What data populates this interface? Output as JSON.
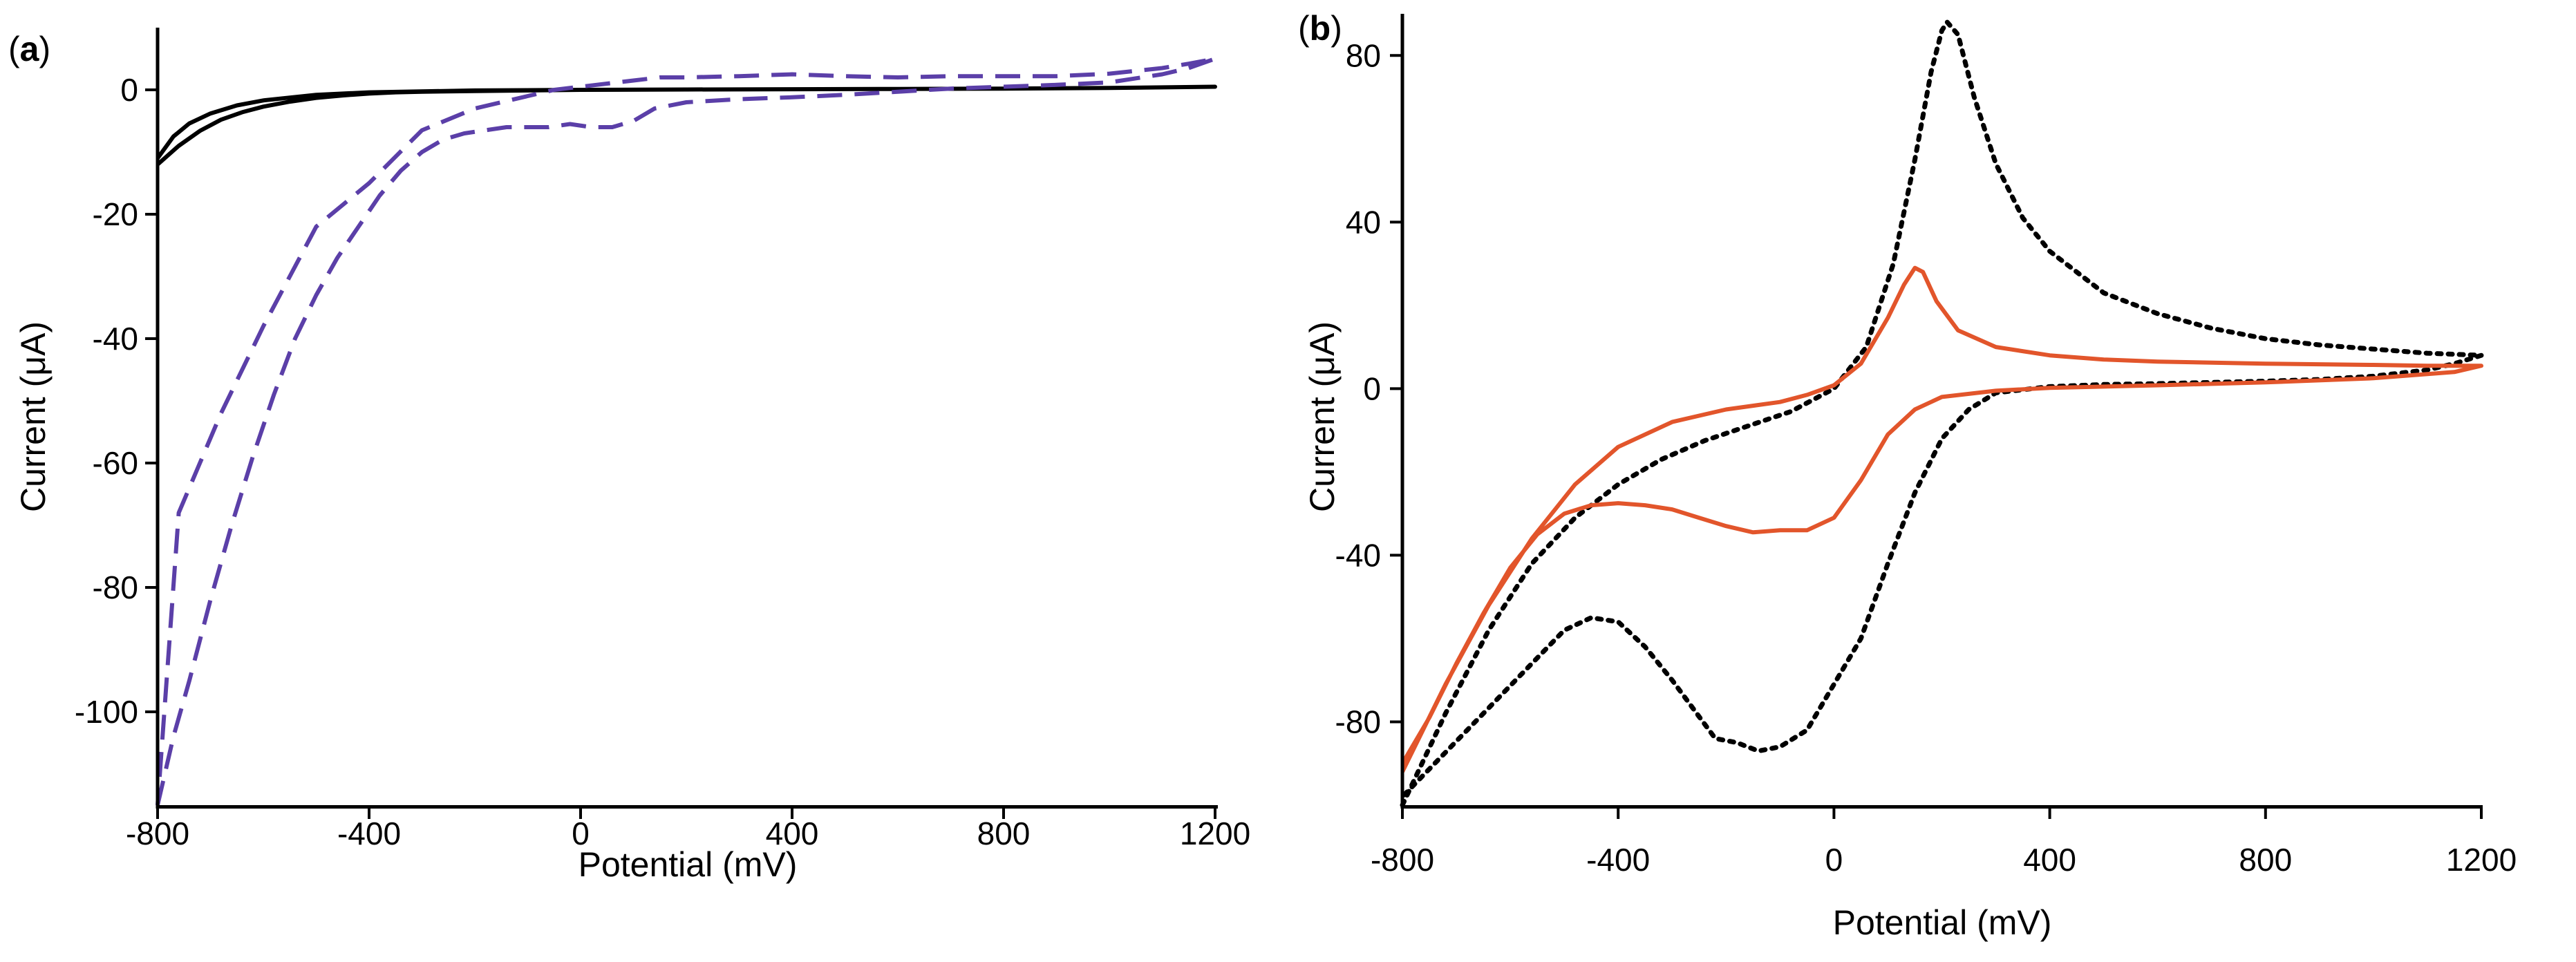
{
  "chart_data": [
    {
      "panel": "a",
      "panel_label": {
        "open": "(",
        "letter": "a",
        "close": ")"
      },
      "type": "line",
      "xlabel": "Potential (mV)",
      "ylabel": "Current (μA)",
      "xlim": [
        -800,
        1200
      ],
      "ylim": [
        -115,
        10
      ],
      "xticks": [
        -800,
        -400,
        0,
        400,
        800,
        1200
      ],
      "yticks": [
        0,
        -20,
        -40,
        -60,
        -80,
        -100
      ],
      "grid": false,
      "series": [
        {
          "name": "black solid",
          "color": "#000000",
          "style": "solid",
          "x": [
            -800,
            -760,
            -720,
            -680,
            -640,
            -600,
            -550,
            -500,
            -450,
            -400,
            -350,
            -300,
            -200,
            -100,
            0,
            200,
            400,
            600,
            800,
            1000,
            1200,
            1000,
            800,
            600,
            400,
            200,
            0,
            -200,
            -400,
            -500,
            -600,
            -650,
            -700,
            -740,
            -770,
            -800
          ],
          "y": [
            -12,
            -9,
            -6.6,
            -4.8,
            -3.6,
            -2.7,
            -1.9,
            -1.3,
            -0.9,
            -0.6,
            -0.4,
            -0.3,
            -0.2,
            -0.1,
            0,
            0.05,
            0.1,
            0.15,
            0.2,
            0.3,
            0.5,
            0.3,
            0.2,
            0.15,
            0.1,
            0.05,
            0,
            -0.1,
            -0.4,
            -0.8,
            -1.7,
            -2.5,
            -3.8,
            -5.4,
            -7.5,
            -11
          ]
        },
        {
          "name": "purple dashed",
          "color": "#5b3fa8",
          "style": "dashed",
          "x": [
            -800,
            -770,
            -740,
            -700,
            -660,
            -620,
            -580,
            -540,
            -500,
            -460,
            -420,
            -380,
            -340,
            -300,
            -260,
            -220,
            -180,
            -140,
            -100,
            -60,
            -20,
            20,
            60,
            100,
            140,
            200,
            300,
            400,
            500,
            600,
            700,
            800,
            900,
            1000,
            1100,
            1150,
            1200,
            1150,
            1100,
            1000,
            900,
            800,
            700,
            600,
            500,
            400,
            300,
            200,
            150,
            100,
            50,
            0,
            -50,
            -100,
            -200,
            -300,
            -400,
            -500,
            -600,
            -680,
            -720,
            -760,
            -800
          ],
          "y": [
            -115,
            -104,
            -95,
            -82,
            -70,
            -59,
            -49,
            -40,
            -33,
            -27,
            -22,
            -17,
            -13,
            -10,
            -8,
            -7,
            -6.5,
            -6,
            -6,
            -6,
            -5.5,
            -6,
            -6,
            -5,
            -3,
            -2,
            -1.5,
            -1.2,
            -0.8,
            -0.3,
            0.2,
            0.5,
            0.8,
            1.2,
            2.5,
            3.5,
            5,
            4.2,
            3.5,
            2.6,
            2.2,
            2.2,
            2.2,
            2,
            2.2,
            2.5,
            2.2,
            2,
            2,
            1.5,
            1,
            0.5,
            0,
            -1,
            -3,
            -6.5,
            -15,
            -22,
            -38,
            -52,
            -60,
            -68,
            -115
          ]
        }
      ]
    },
    {
      "panel": "b",
      "panel_label": {
        "open": "(",
        "letter": "b",
        "close": ")"
      },
      "type": "line",
      "xlabel": "Potential (mV)",
      "ylabel": "Current (μA)",
      "xlim": [
        -800,
        1200
      ],
      "ylim": [
        -100,
        90
      ],
      "xticks": [
        -800,
        -400,
        0,
        400,
        800,
        1200
      ],
      "yticks": [
        80,
        40,
        0,
        -40,
        -80
      ],
      "grid": false,
      "series": [
        {
          "name": "black dotted",
          "color": "#000000",
          "style": "dotted",
          "x": [
            -800,
            -720,
            -640,
            -560,
            -480,
            -400,
            -320,
            -240,
            -160,
            -80,
            0,
            60,
            110,
            150,
            180,
            200,
            210,
            230,
            260,
            300,
            350,
            400,
            500,
            600,
            700,
            800,
            900,
            1000,
            1100,
            1200,
            1150,
            1100,
            1000,
            900,
            800,
            700,
            600,
            500,
            400,
            300,
            250,
            200,
            150,
            100,
            50,
            0,
            -50,
            -100,
            -140,
            -180,
            -220,
            -260,
            -300,
            -350,
            -400,
            -450,
            -500,
            -560,
            -620,
            -680,
            -740,
            -800
          ],
          "y": [
            -100,
            -78,
            -58,
            -42,
            -31,
            -23,
            -17,
            -12.5,
            -9,
            -5.5,
            0,
            10,
            30,
            55,
            76,
            86,
            88,
            85,
            70,
            54,
            41,
            33,
            23,
            18,
            14.5,
            12,
            10.5,
            9.5,
            8.5,
            8,
            6,
            4.5,
            3,
            2.2,
            1.8,
            1.5,
            1.2,
            1,
            0.5,
            -1,
            -5,
            -12,
            -25,
            -42,
            -60,
            -71,
            -82,
            -86,
            -87,
            -85,
            -84,
            -77,
            -70,
            -62,
            -56,
            -55,
            -58,
            -66,
            -74,
            -82,
            -90,
            -98
          ]
        },
        {
          "name": "red solid",
          "color": "#e2552b",
          "style": "solid",
          "x": [
            -800,
            -720,
            -640,
            -560,
            -480,
            -400,
            -300,
            -200,
            -100,
            -50,
            0,
            50,
            100,
            130,
            150,
            165,
            190,
            230,
            300,
            400,
            500,
            600,
            800,
            1000,
            1100,
            1200,
            1150,
            1000,
            800,
            600,
            400,
            300,
            200,
            150,
            100,
            50,
            0,
            -50,
            -100,
            -150,
            -200,
            -250,
            -300,
            -350,
            -400,
            -450,
            -500,
            -550,
            -600,
            -650,
            -700,
            -750,
            -800
          ],
          "y": [
            -92,
            -71,
            -52,
            -36,
            -23,
            -14,
            -8,
            -5,
            -3.2,
            -1.5,
            0.8,
            6,
            17,
            25,
            29,
            28,
            21,
            14,
            10,
            8,
            7,
            6.5,
            6,
            5.7,
            5.5,
            5.5,
            4,
            2.5,
            1.5,
            0.8,
            0.2,
            -0.5,
            -2,
            -5,
            -11,
            -22,
            -31,
            -34,
            -34,
            -34.5,
            -33,
            -31,
            -29,
            -28,
            -27.5,
            -28,
            -30,
            -35,
            -43,
            -54,
            -66,
            -79,
            -90
          ]
        }
      ]
    }
  ]
}
